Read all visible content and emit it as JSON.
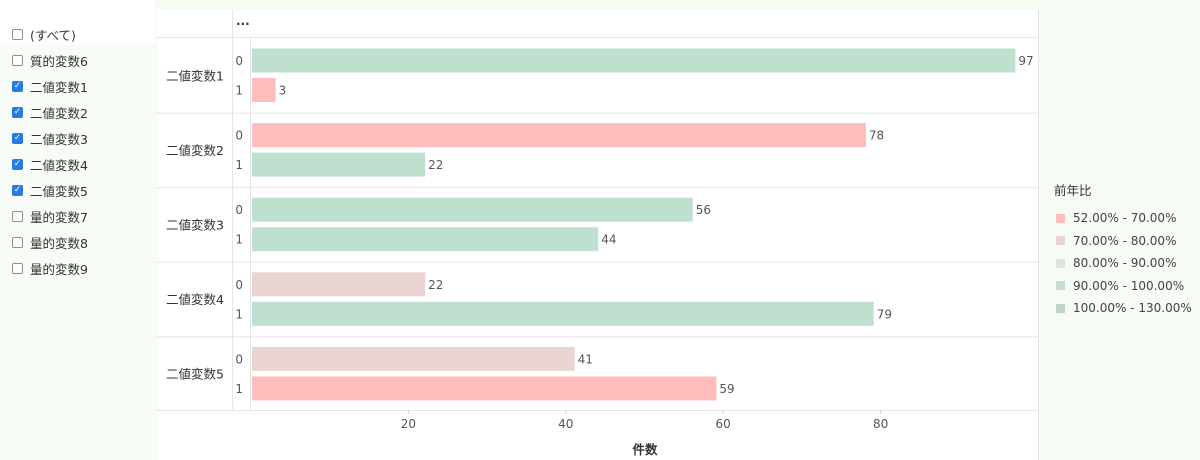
{
  "filter": {
    "items": [
      {
        "label": "(すべて)",
        "checked": false
      },
      {
        "label": "質的変数6",
        "checked": false
      },
      {
        "label": "二値変数1",
        "checked": true
      },
      {
        "label": "二値変数2",
        "checked": true
      },
      {
        "label": "二値変数3",
        "checked": true
      },
      {
        "label": "二値変数4",
        "checked": true
      },
      {
        "label": "二値変数5",
        "checked": true
      },
      {
        "label": "量的変数7",
        "checked": false
      },
      {
        "label": "量的変数8",
        "checked": false
      },
      {
        "label": "量的変数9",
        "checked": false
      }
    ]
  },
  "header": {
    "more_label": "..."
  },
  "legend": {
    "title": "前年比",
    "items": [
      {
        "label": "52.00% - 70.00%",
        "color": "#ffbcbc"
      },
      {
        "label": "70.00% - 80.00%",
        "color": "#ead3d3"
      },
      {
        "label": "80.00% - 90.00%",
        "color": "#dfe4df"
      },
      {
        "label": "90.00% - 100.00%",
        "color": "#c9ddd0"
      },
      {
        "label": "100.00% - 130.00%",
        "color": "#bdd3cb"
      }
    ]
  },
  "chart_data": {
    "type": "bar",
    "orientation": "horizontal",
    "xlabel": "件数",
    "xticks": [
      20,
      40,
      60,
      80
    ],
    "xlim": [
      0,
      100
    ],
    "groups": [
      {
        "label": "二値変数1",
        "bars": [
          {
            "category": "0",
            "value": 97,
            "color": "#bfe0cf"
          },
          {
            "category": "1",
            "value": 3,
            "color": "#ffbcbc"
          }
        ]
      },
      {
        "label": "二値変数2",
        "bars": [
          {
            "category": "0",
            "value": 78,
            "color": "#ffbcbc"
          },
          {
            "category": "1",
            "value": 22,
            "color": "#bfe0cf"
          }
        ]
      },
      {
        "label": "二値変数3",
        "bars": [
          {
            "category": "0",
            "value": 56,
            "color": "#bfe0cf"
          },
          {
            "category": "1",
            "value": 44,
            "color": "#bfe0cf"
          }
        ]
      },
      {
        "label": "二値変数4",
        "bars": [
          {
            "category": "0",
            "value": 22,
            "color": "#ead3d3"
          },
          {
            "category": "1",
            "value": 79,
            "color": "#bfe0cf"
          }
        ]
      },
      {
        "label": "二値変数5",
        "bars": [
          {
            "category": "0",
            "value": 41,
            "color": "#ead3d3"
          },
          {
            "category": "1",
            "value": 59,
            "color": "#ffbcbc"
          }
        ]
      }
    ]
  }
}
